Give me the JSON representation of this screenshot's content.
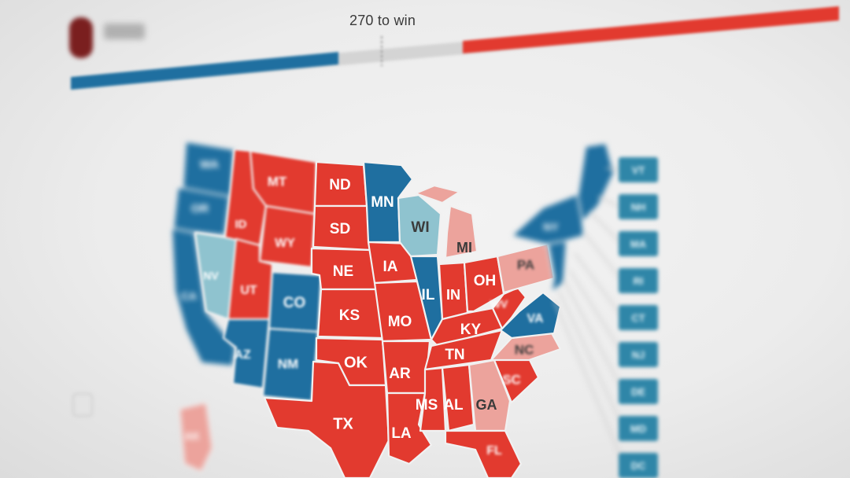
{
  "header": {
    "win_label": "270 to win"
  },
  "colors": {
    "dem_strong": "#1f6fa0",
    "dem_lean": "#8fc3cf",
    "rep_strong": "#e23a2f",
    "rep_lean": "#eca39c",
    "tossup": "#d9d9d9",
    "border": "#f1f1f1"
  },
  "states": [
    {
      "abbr": "WA",
      "fill": "dem_strong"
    },
    {
      "abbr": "OR",
      "fill": "dem_strong"
    },
    {
      "abbr": "CA",
      "fill": "dem_strong"
    },
    {
      "abbr": "NV",
      "fill": "dem_lean"
    },
    {
      "abbr": "ID",
      "fill": "rep_strong"
    },
    {
      "abbr": "MT",
      "fill": "rep_strong"
    },
    {
      "abbr": "WY",
      "fill": "rep_strong"
    },
    {
      "abbr": "UT",
      "fill": "rep_strong"
    },
    {
      "abbr": "AZ",
      "fill": "dem_strong"
    },
    {
      "abbr": "CO",
      "fill": "dem_strong"
    },
    {
      "abbr": "NM",
      "fill": "dem_strong"
    },
    {
      "abbr": "ND",
      "fill": "rep_strong"
    },
    {
      "abbr": "SD",
      "fill": "rep_strong"
    },
    {
      "abbr": "NE",
      "fill": "rep_strong"
    },
    {
      "abbr": "KS",
      "fill": "rep_strong"
    },
    {
      "abbr": "OK",
      "fill": "rep_strong"
    },
    {
      "abbr": "TX",
      "fill": "rep_strong"
    },
    {
      "abbr": "MN",
      "fill": "dem_strong"
    },
    {
      "abbr": "IA",
      "fill": "rep_strong"
    },
    {
      "abbr": "MO",
      "fill": "rep_strong"
    },
    {
      "abbr": "AR",
      "fill": "rep_strong"
    },
    {
      "abbr": "LA",
      "fill": "rep_strong"
    },
    {
      "abbr": "WI",
      "fill": "dem_lean"
    },
    {
      "abbr": "IL",
      "fill": "dem_strong"
    },
    {
      "abbr": "MI",
      "fill": "rep_lean"
    },
    {
      "abbr": "IN",
      "fill": "rep_strong"
    },
    {
      "abbr": "OH",
      "fill": "rep_strong"
    },
    {
      "abbr": "KY",
      "fill": "rep_strong"
    },
    {
      "abbr": "TN",
      "fill": "rep_strong"
    },
    {
      "abbr": "MS",
      "fill": "rep_strong"
    },
    {
      "abbr": "AL",
      "fill": "rep_strong"
    },
    {
      "abbr": "GA",
      "fill": "rep_lean"
    },
    {
      "abbr": "FL",
      "fill": "rep_strong"
    },
    {
      "abbr": "SC",
      "fill": "rep_strong"
    },
    {
      "abbr": "NC",
      "fill": "rep_lean"
    },
    {
      "abbr": "VA",
      "fill": "dem_strong"
    },
    {
      "abbr": "WV",
      "fill": "rep_strong"
    },
    {
      "abbr": "PA",
      "fill": "rep_lean"
    },
    {
      "abbr": "NY",
      "fill": "dem_strong"
    },
    {
      "abbr": "NE_REGION",
      "fill": "dem_strong"
    },
    {
      "abbr": "AK",
      "fill": "rep_lean"
    }
  ],
  "districts": [
    "VT",
    "NH",
    "MA",
    "RI",
    "CT",
    "NJ",
    "DE",
    "MD",
    "DC"
  ]
}
